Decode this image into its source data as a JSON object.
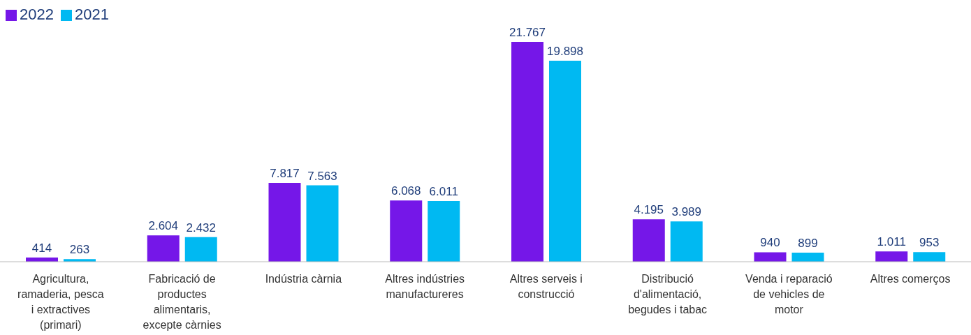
{
  "chart_data": {
    "type": "bar",
    "categories": [
      "Agricultura, ramaderia, pesca i extractives (primari)",
      "Fabricació de productes alimentaris, excepte càrnies",
      "Indústria càrnia",
      "Altres indústries manufactureres",
      "Altres serveis i construcció",
      "Distribució d'alimentació, begudes i tabac",
      "Venda i reparació de vehicles de motor",
      "Altres comerços"
    ],
    "series": [
      {
        "name": "2022",
        "color": "#7517e8",
        "values": [
          414,
          2604,
          7817,
          6068,
          21767,
          4195,
          940,
          1011
        ],
        "value_labels": [
          "414",
          "2.604",
          "7.817",
          "6.068",
          "21.767",
          "4.195",
          "940",
          "1.011"
        ]
      },
      {
        "name": "2021",
        "color": "#00b9f2",
        "values": [
          263,
          2432,
          7563,
          6011,
          19898,
          3989,
          899,
          953
        ],
        "value_labels": [
          "263",
          "2.432",
          "7.563",
          "6.011",
          "19.898",
          "3.989",
          "899",
          "953"
        ]
      }
    ],
    "legend": "top left",
    "grid": false
  }
}
